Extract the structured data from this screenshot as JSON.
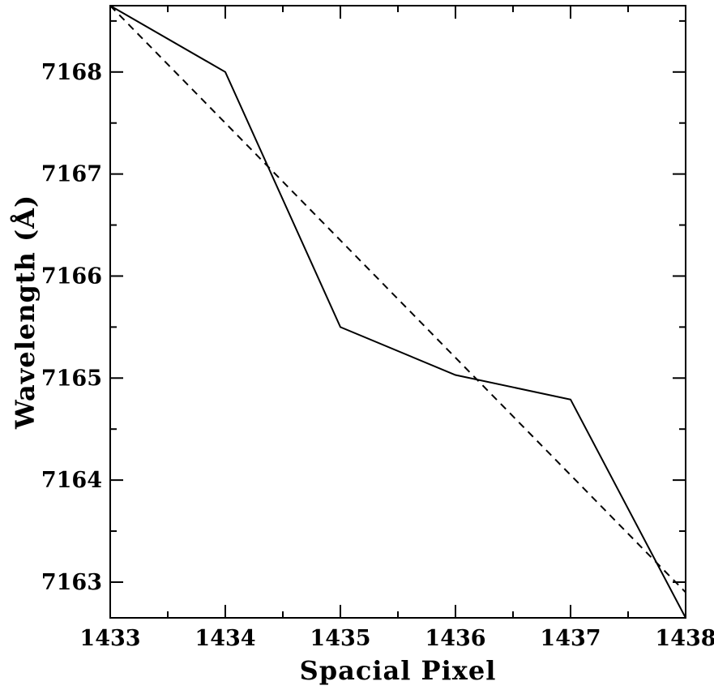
{
  "chart_data": {
    "type": "line",
    "title": "",
    "xlabel": "Spacial Pixel",
    "ylabel": "Wavelength (Å)",
    "xlim": [
      1433,
      1438
    ],
    "ylim": [
      7162.65,
      7168.65
    ],
    "x_ticks": [
      1433,
      1434,
      1435,
      1436,
      1437,
      1438
    ],
    "y_ticks": [
      7163,
      7164,
      7165,
      7166,
      7167,
      7168
    ],
    "x_tick_labels": [
      "1433",
      "1434",
      "1435",
      "1436",
      "1437",
      "1438"
    ],
    "y_tick_labels": [
      "7163",
      "7164",
      "7165",
      "7166",
      "7167",
      "7168"
    ],
    "grid": false,
    "legend": "none",
    "series": [
      {
        "style": "solid",
        "color": "#000000",
        "x": [
          1433,
          1434,
          1435,
          1436,
          1437,
          1438
        ],
        "y": [
          7168.65,
          7168.0,
          7165.5,
          7165.03,
          7164.79,
          7162.65
        ]
      },
      {
        "style": "dashed",
        "color": "#000000",
        "x": [
          1433,
          1438
        ],
        "y": [
          7168.65,
          7162.9
        ]
      }
    ]
  }
}
